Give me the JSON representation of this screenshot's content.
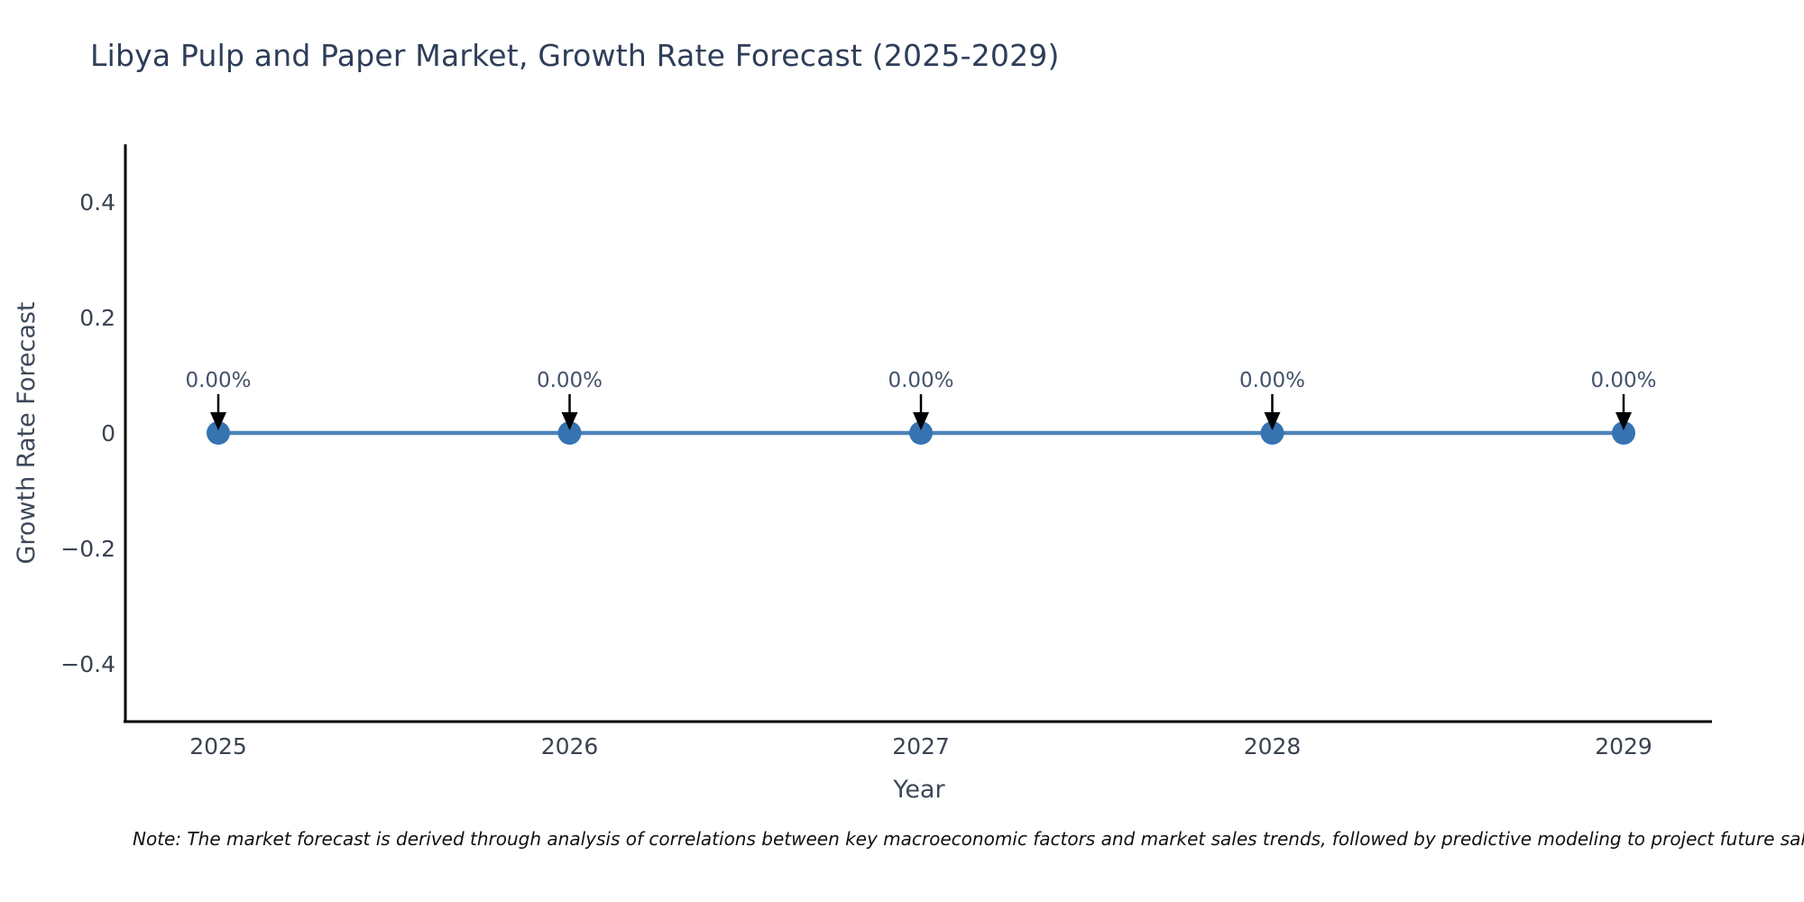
{
  "title": "Libya Pulp and Paper Market, Growth Rate Forecast (2025-2029)",
  "note": "Note: The market forecast is derived through analysis of correlations between key macroeconomic factors and market sales trends, followed by predictive modeling to project future sal",
  "chart_data": {
    "type": "line",
    "title": "Libya Pulp and Paper Market, Growth Rate Forecast (2025-2029)",
    "x": [
      2025,
      2026,
      2027,
      2028,
      2029
    ],
    "xtick_labels": [
      "2025",
      "2026",
      "2027",
      "2028",
      "2029"
    ],
    "series": [
      {
        "name": "Growth Rate Forecast",
        "values": [
          0,
          0,
          0,
          0,
          0
        ],
        "point_labels": [
          "0.00%",
          "0.00%",
          "0.00%",
          "0.00%",
          "0.00%"
        ]
      }
    ],
    "xlabel": "Year",
    "ylabel": "Growth Rate Forecast",
    "ylim": [
      -0.5,
      0.5
    ],
    "yticks": [
      0.4,
      0.2,
      0,
      -0.2,
      -0.4
    ],
    "ytick_labels": [
      "0.4",
      "0.2",
      "0",
      "−0.2",
      "−0.4"
    ],
    "grid": false,
    "legend_position": "none",
    "annotations_have_arrows": true
  },
  "colors": {
    "background": "#ffffff",
    "title_text": "#2e3e59",
    "axis_line": "#000000",
    "tick_label": "#3b4351",
    "axis_label": "#3c4859",
    "annotation_text": "#44536a",
    "annotation_arrow": "#000000",
    "line": "#4d83b8",
    "marker": "#3673b1",
    "note_text": "#111111"
  }
}
